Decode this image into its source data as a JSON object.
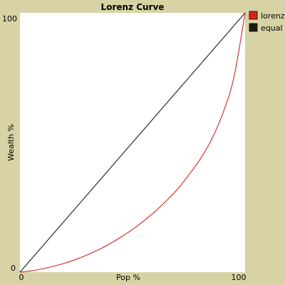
{
  "chart_data": {
    "type": "line",
    "title": "Lorenz Curve",
    "xlabel": "Pop %",
    "ylabel": "Wealth %",
    "xlim": [
      0,
      100
    ],
    "ylim": [
      0,
      100
    ],
    "x_ticks": [
      "0",
      "100"
    ],
    "y_ticks": [
      "0",
      "100"
    ],
    "grid": false,
    "legend_position": "top-right",
    "series": [
      {
        "name": "lorenz",
        "color": "#d7261e",
        "x": [
          0,
          5,
          10,
          15,
          20,
          25,
          30,
          35,
          40,
          45,
          50,
          55,
          60,
          65,
          70,
          75,
          80,
          85,
          90,
          95,
          100
        ],
        "y": [
          0,
          0.5,
          1.3,
          2.3,
          3.5,
          5,
          6.7,
          8.7,
          11,
          13.6,
          16.5,
          19.8,
          23.4,
          27.5,
          32,
          37.5,
          43.5,
          51,
          61,
          75,
          100
        ]
      },
      {
        "name": "equal",
        "color": "#1a1a1a",
        "x": [
          0,
          100
        ],
        "y": [
          0,
          100
        ]
      }
    ]
  }
}
